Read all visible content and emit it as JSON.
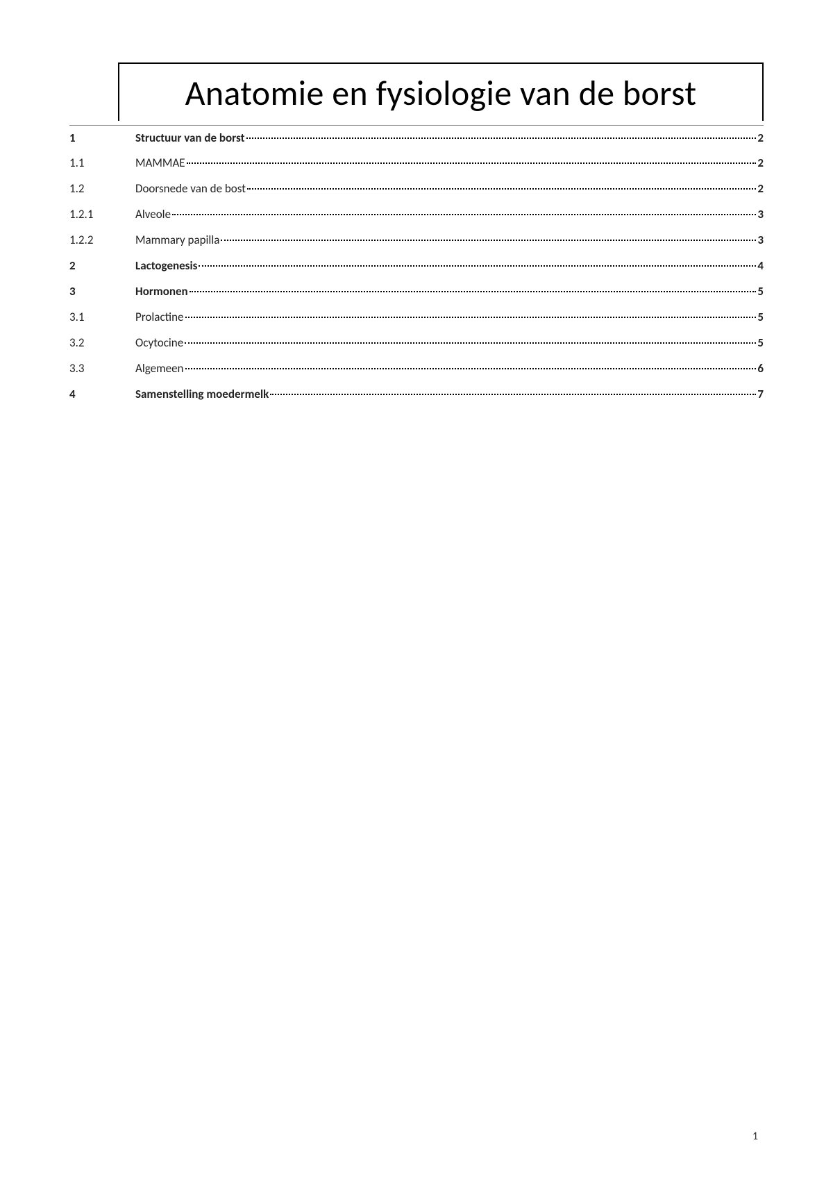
{
  "title": "Anatomie en fysiologie van de borst",
  "toc": [
    {
      "num": "1",
      "title": "Structuur van de borst",
      "page": "2",
      "bold": true
    },
    {
      "num": "1.1",
      "title": "MAMMAE",
      "page": "2",
      "bold": false
    },
    {
      "num": "1.2",
      "title": "Doorsnede van de bost",
      "page": "2",
      "bold": false
    },
    {
      "num": "1.2.1",
      "title": "Alveole",
      "page": "3",
      "bold": false
    },
    {
      "num": "1.2.2",
      "title": "Mammary papilla",
      "page": "3",
      "bold": false
    },
    {
      "num": "2",
      "title": "Lactogenesis",
      "page": "4",
      "bold": true
    },
    {
      "num": "3",
      "title": "Hormonen",
      "page": "5",
      "bold": true
    },
    {
      "num": "3.1",
      "title": "Prolactine",
      "page": "5",
      "bold": false
    },
    {
      "num": "3.2",
      "title": "Ocytocine",
      "page": "5",
      "bold": false
    },
    {
      "num": "3.3",
      "title": "Algemeen",
      "page": "6",
      "bold": false
    },
    {
      "num": "4",
      "title": "Samenstelling moedermelk",
      "page": "7",
      "bold": true
    }
  ],
  "page_number": "1"
}
